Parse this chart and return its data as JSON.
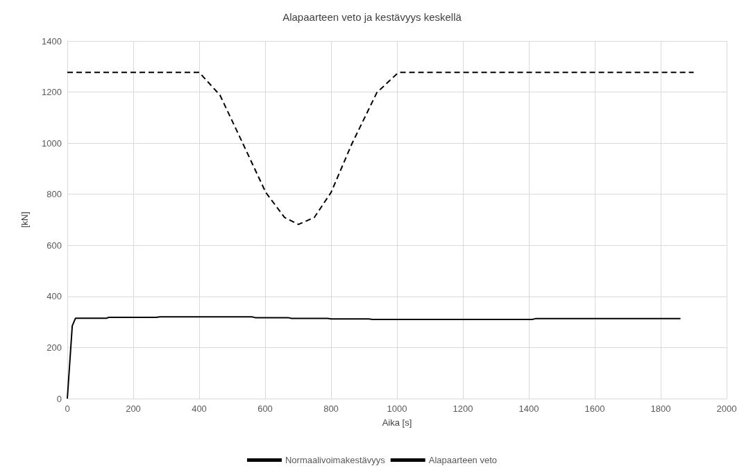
{
  "chart_data": {
    "type": "line",
    "title": "Alapaarteen veto ja kestävyys keskellä",
    "xlabel": "Aika [s]",
    "ylabel": "[kN]",
    "xlim": [
      0,
      2000
    ],
    "xticks": [
      0,
      200,
      400,
      600,
      800,
      1000,
      1200,
      1400,
      1600,
      1800,
      2000
    ],
    "ylim": [
      0,
      1400
    ],
    "yticks": [
      0,
      200,
      400,
      600,
      800,
      1000,
      1200,
      1400
    ],
    "grid": true,
    "legend": "bottom",
    "marker": "none",
    "series": [
      {
        "name": "Normaalivoimakestävyys",
        "color": "#000000",
        "line_style": "dashed",
        "x": [
          0,
          400,
          463,
          533,
          602,
          659,
          701,
          749,
          800,
          863,
          939,
          1002,
          1010,
          1900
        ],
        "values": [
          1277,
          1277,
          1188,
          997,
          807,
          709,
          682,
          709,
          807,
          997,
          1198,
          1274,
          1277,
          1277
        ]
      },
      {
        "name": "Alapaarteen veto",
        "color": "#000000",
        "line_style": "solid",
        "x": [
          0,
          15,
          25,
          120,
          125,
          270,
          280,
          560,
          570,
          670,
          680,
          790,
          800,
          915,
          925,
          1410,
          1420,
          1860
        ],
        "values": [
          0,
          285,
          315,
          315,
          318,
          318,
          320,
          320,
          317,
          317,
          314,
          314,
          312,
          312,
          310,
          310,
          313,
          313
        ]
      }
    ]
  }
}
